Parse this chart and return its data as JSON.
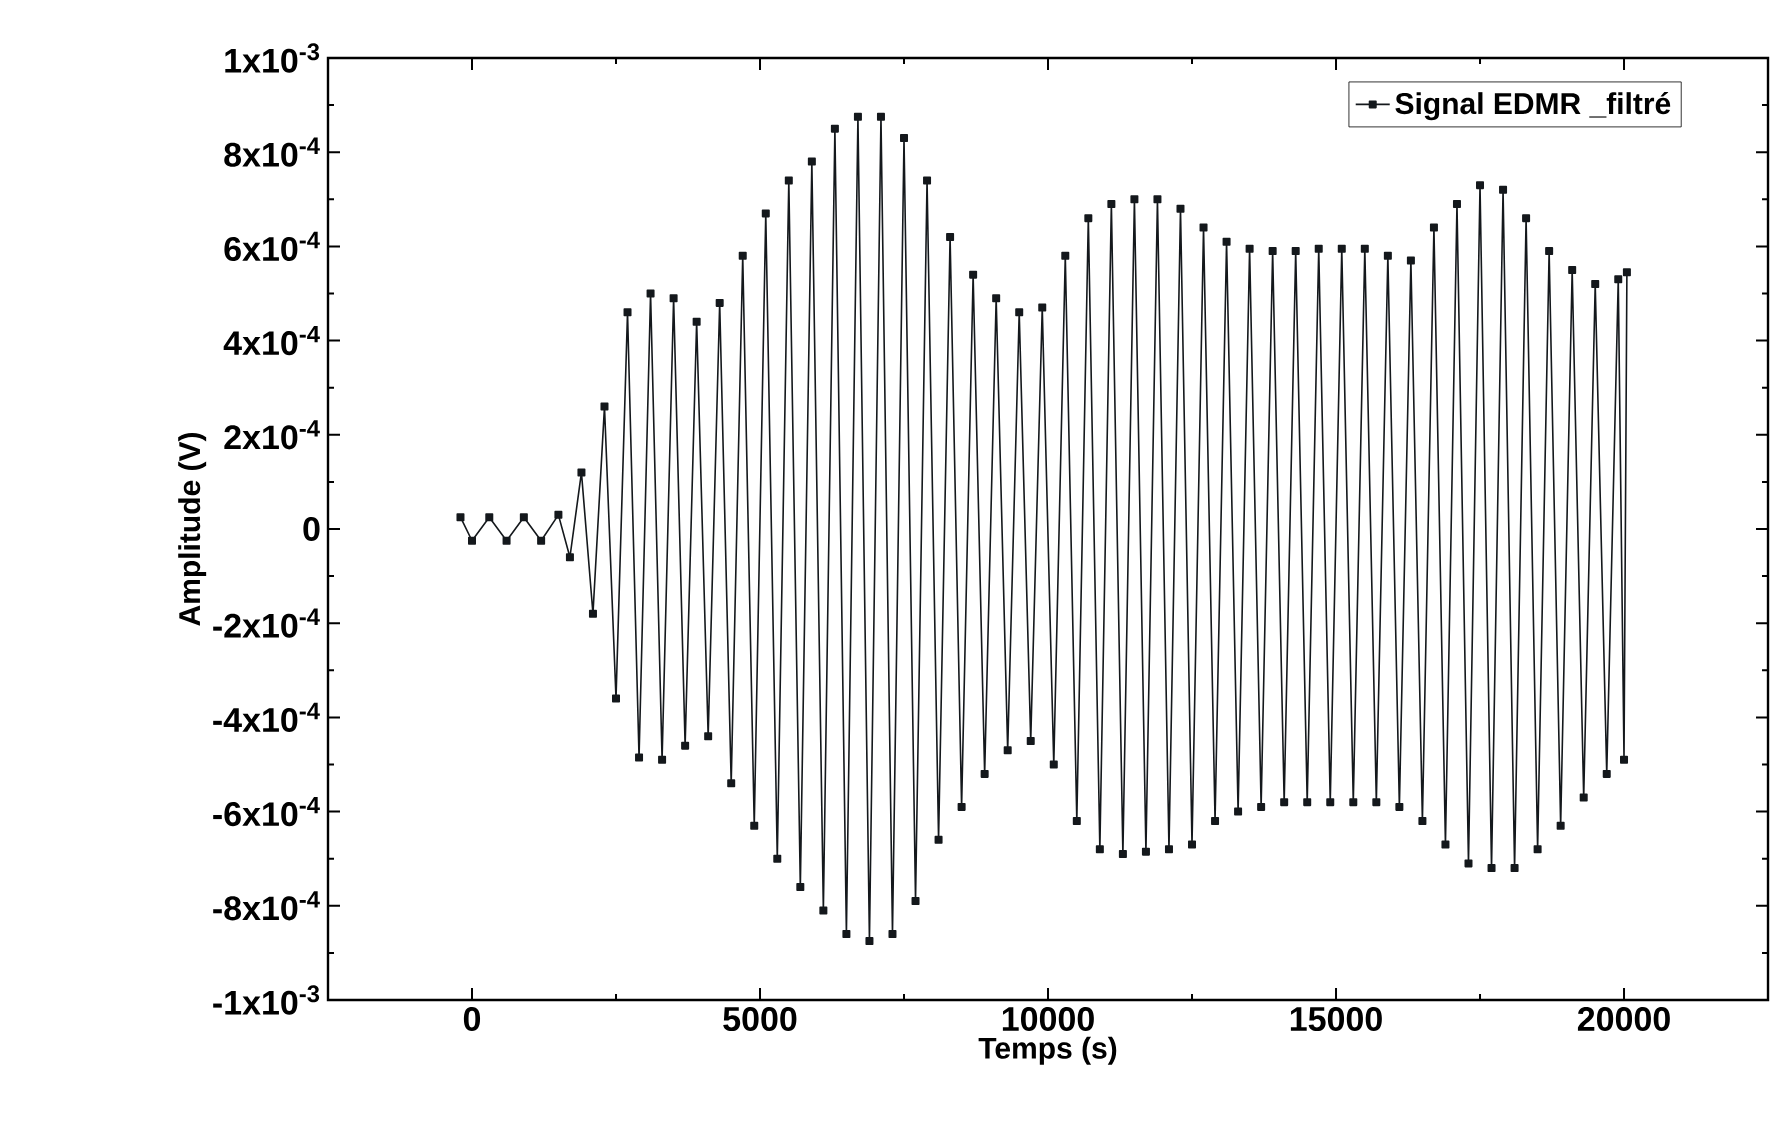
{
  "chart_data": {
    "type": "line",
    "xlabel": "Temps (s)",
    "ylabel": "Amplitude (V)",
    "xlim": [
      -2500,
      22500
    ],
    "xticks": [
      0,
      5000,
      10000,
      15000,
      20000
    ],
    "ylim": [
      -0.001,
      0.001
    ],
    "yticks": [
      {
        "value": -0.001,
        "label": "-1x10$^{-3}$"
      },
      {
        "value": -0.0008,
        "label": "-8x10$^{-4}$"
      },
      {
        "value": -0.0006,
        "label": "-6x10$^{-4}$"
      },
      {
        "value": -0.0004,
        "label": "-4x10$^{-4}$"
      },
      {
        "value": -0.0002,
        "label": "-2x10$^{-4}$"
      },
      {
        "value": 0,
        "label": "0"
      },
      {
        "value": 0.0002,
        "label": "2x10$^{-4}$"
      },
      {
        "value": 0.0004,
        "label": "4x10$^{-4}$"
      },
      {
        "value": 0.0006,
        "label": "6x10$^{-4}$"
      },
      {
        "value": 0.0008,
        "label": "8x10$^{-4}$"
      },
      {
        "value": 0.001,
        "label": "1x10$^{-3}$"
      }
    ],
    "legend": "top right",
    "marker": "square",
    "line_style": "solid",
    "grid": false,
    "series": [
      {
        "name": "Signal EDMR _filtré",
        "color": "#14181c",
        "x": [
          -200,
          0,
          300,
          600,
          900,
          1200,
          1500,
          1700,
          1900,
          2100,
          2300,
          2500,
          2700,
          2900,
          3100,
          3300,
          3500,
          3700,
          3900,
          4100,
          4300,
          4500,
          4700,
          4900,
          5100,
          5300,
          5500,
          5700,
          5900,
          6100,
          6300,
          6500,
          6700,
          6900,
          7100,
          7300,
          7500,
          7700,
          7900,
          8100,
          8300,
          8500,
          8700,
          8900,
          9100,
          9300,
          9500,
          9700,
          9900,
          10100,
          10300,
          10500,
          10700,
          10900,
          11100,
          11300,
          11500,
          11700,
          11900,
          12100,
          12300,
          12500,
          12700,
          12900,
          13100,
          13300,
          13500,
          13700,
          13900,
          14100,
          14300,
          14500,
          14700,
          14900,
          15100,
          15300,
          15500,
          15700,
          15900,
          16100,
          16300,
          16500,
          16700,
          16900,
          17100,
          17300,
          17500,
          17700,
          17900,
          18100,
          18300,
          18500,
          18700,
          18900,
          19100,
          19300,
          19500,
          19700,
          19900,
          20000,
          20050
        ],
        "values": [
          2.5e-05,
          -2.5e-05,
          2.5e-05,
          -2.5e-05,
          2.5e-05,
          -2.5e-05,
          3e-05,
          -6e-05,
          0.00012,
          -0.00018,
          0.00026,
          -0.00036,
          0.00046,
          -0.000485,
          0.0005,
          -0.00049,
          0.00049,
          -0.00046,
          0.00044,
          -0.00044,
          0.00048,
          -0.00054,
          0.00058,
          -0.00063,
          0.00067,
          -0.0007,
          0.00074,
          -0.00076,
          0.00078,
          -0.00081,
          0.00085,
          -0.00086,
          0.000875,
          -0.000875,
          0.000875,
          -0.00086,
          0.00083,
          -0.00079,
          0.00074,
          -0.00066,
          0.00062,
          -0.00059,
          0.00054,
          -0.00052,
          0.00049,
          -0.00047,
          0.00046,
          -0.00045,
          0.00047,
          -0.0005,
          0.00058,
          -0.00062,
          0.00066,
          -0.00068,
          0.00069,
          -0.00069,
          0.0007,
          -0.000685,
          0.0007,
          -0.00068,
          0.00068,
          -0.00067,
          0.00064,
          -0.00062,
          0.00061,
          -0.0006,
          0.000595,
          -0.00059,
          0.00059,
          -0.00058,
          0.00059,
          -0.00058,
          0.000595,
          -0.00058,
          0.000595,
          -0.00058,
          0.000595,
          -0.00058,
          0.00058,
          -0.00059,
          0.00057,
          -0.00062,
          0.00064,
          -0.00067,
          0.00069,
          -0.00071,
          0.00073,
          -0.00072,
          0.00072,
          -0.00072,
          0.00066,
          -0.00068,
          0.00059,
          -0.00063,
          0.00055,
          -0.00057,
          0.00052,
          -0.00052,
          0.00053,
          -0.00049,
          0.000545
        ]
      }
    ]
  }
}
